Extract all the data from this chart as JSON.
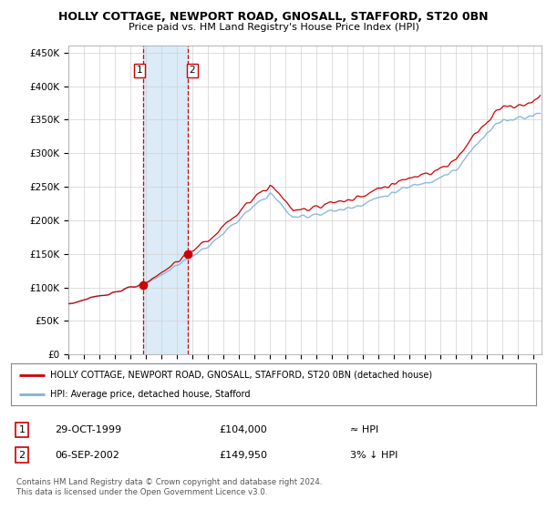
{
  "title": "HOLLY COTTAGE, NEWPORT ROAD, GNOSALL, STAFFORD, ST20 0BN",
  "subtitle": "Price paid vs. HM Land Registry's House Price Index (HPI)",
  "ylabel_ticks": [
    "£0",
    "£50K",
    "£100K",
    "£150K",
    "£200K",
    "£250K",
    "£300K",
    "£350K",
    "£400K",
    "£450K"
  ],
  "ytick_values": [
    0,
    50000,
    100000,
    150000,
    200000,
    250000,
    300000,
    350000,
    400000,
    450000
  ],
  "ylim": [
    0,
    460000
  ],
  "xlim_start": 1995.0,
  "xlim_end": 2025.5,
  "hpi_color": "#7fb3d8",
  "price_color": "#cc0000",
  "sale1_x": 1999.83,
  "sale1_y": 104000,
  "sale2_x": 2002.68,
  "sale2_y": 149950,
  "shade_x1": 1999.83,
  "shade_x2": 2002.68,
  "legend_label1": "HOLLY COTTAGE, NEWPORT ROAD, GNOSALL, STAFFORD, ST20 0BN (detached house)",
  "legend_label2": "HPI: Average price, detached house, Stafford",
  "table_row1_num": "1",
  "table_row1_date": "29-OCT-1999",
  "table_row1_price": "£104,000",
  "table_row1_hpi": "≈ HPI",
  "table_row2_num": "2",
  "table_row2_date": "06-SEP-2002",
  "table_row2_price": "£149,950",
  "table_row2_hpi": "3% ↓ HPI",
  "footnote": "Contains HM Land Registry data © Crown copyright and database right 2024.\nThis data is licensed under the Open Government Licence v3.0.",
  "background_color": "#ffffff"
}
